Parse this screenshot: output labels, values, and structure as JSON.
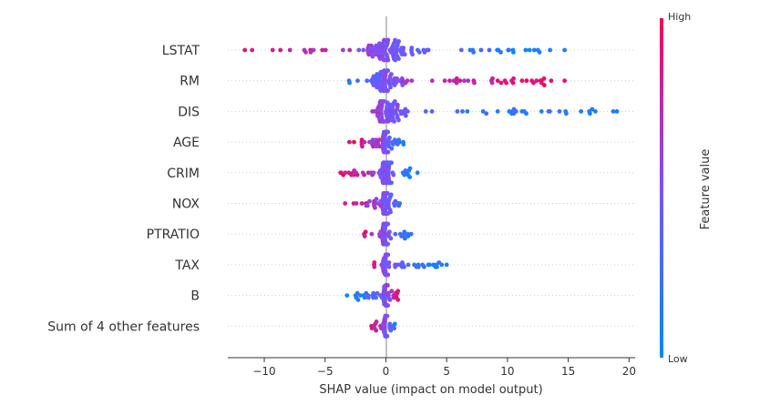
{
  "chart_data": {
    "type": "scatter",
    "subtype": "shap-beeswarm-summary",
    "xlabel": "SHAP value (impact on model output)",
    "xlim": [
      -13,
      20.5
    ],
    "xticks": [
      -10,
      -5,
      0,
      5,
      10,
      15,
      20
    ],
    "xtick_labels": [
      "−10",
      "−5",
      "0",
      "5",
      "10",
      "15",
      "20"
    ],
    "grid": false,
    "colorbar": {
      "title": "Feature value",
      "high_label": "High",
      "low_label": "Low",
      "low_color": "#008bfb",
      "high_color": "#ff0052"
    },
    "features": [
      {
        "name": "LSTAT",
        "range": [
          -11.6,
          14.7
        ],
        "high_side": "negative",
        "spread": 0.85,
        "n": 120,
        "outliers": [
          [
            -11.6,
            0.9
          ],
          [
            -11.0,
            0.8
          ],
          [
            11.5,
            0.1
          ],
          [
            12.5,
            0.1
          ],
          [
            13.5,
            0.1
          ],
          [
            14.7,
            0.1
          ]
        ]
      },
      {
        "name": "RM",
        "range": [
          -4.5,
          14.7
        ],
        "high_side": "positive",
        "spread": 0.7,
        "n": 110,
        "outliers": [
          [
            9.2,
            0.9
          ],
          [
            9.9,
            0.9
          ],
          [
            10.5,
            0.85
          ],
          [
            11.2,
            0.9
          ],
          [
            12.0,
            0.9
          ],
          [
            12.8,
            0.85
          ],
          [
            13.6,
            0.9
          ],
          [
            14.7,
            0.9
          ]
        ]
      },
      {
        "name": "DIS",
        "range": [
          -2.2,
          19.0
        ],
        "high_side": "negative",
        "spread": 0.7,
        "n": 100,
        "outliers": [
          [
            6.7,
            0.1
          ],
          [
            8.0,
            0.1
          ],
          [
            10.4,
            0.1
          ],
          [
            11.2,
            0.1
          ],
          [
            12.8,
            0.1
          ],
          [
            18.7,
            0.1
          ],
          [
            19.0,
            0.1
          ]
        ]
      },
      {
        "name": "AGE",
        "range": [
          -3.0,
          1.9
        ],
        "high_side": "negative",
        "spread": 0.75,
        "n": 80,
        "outliers": [
          [
            -3.0,
            0.9
          ]
        ]
      },
      {
        "name": "CRIM",
        "range": [
          -4.5,
          2.7
        ],
        "high_side": "negative",
        "spread": 0.75,
        "n": 90,
        "outliers": [
          [
            2.6,
            0.1
          ]
        ]
      },
      {
        "name": "NOX",
        "range": [
          -4.0,
          2.6
        ],
        "high_side": "negative",
        "spread": 0.65,
        "n": 85,
        "outliers": []
      },
      {
        "name": "PTRATIO",
        "range": [
          -2.3,
          2.5
        ],
        "high_side": "negative",
        "spread": 0.75,
        "n": 80,
        "outliers": []
      },
      {
        "name": "TAX",
        "range": [
          -1.5,
          5.0
        ],
        "high_side": "negative",
        "spread": 0.5,
        "n": 70,
        "outliers": [
          [
            4.2,
            0.1
          ],
          [
            4.6,
            0.1
          ],
          [
            5.0,
            0.1
          ]
        ]
      },
      {
        "name": "B",
        "range": [
          -3.2,
          1.4
        ],
        "high_side": "positive",
        "spread": 0.6,
        "n": 75,
        "outliers": [
          [
            -3.2,
            0.1
          ]
        ]
      },
      {
        "name": "Sum of 4 other features",
        "range": [
          -1.7,
          1.0
        ],
        "high_side": "negative",
        "spread": 0.65,
        "n": 60,
        "outliers": []
      }
    ]
  }
}
